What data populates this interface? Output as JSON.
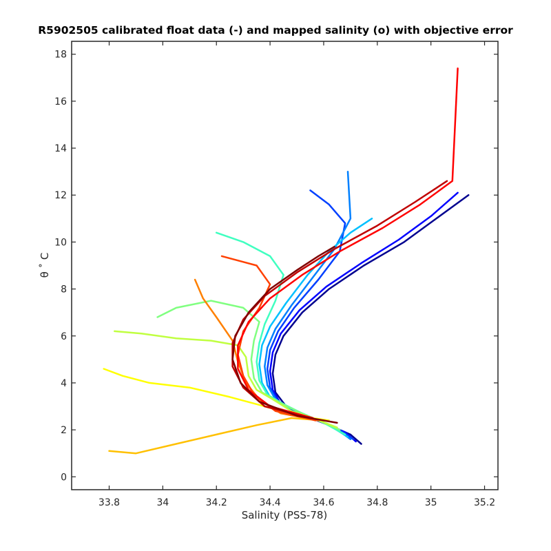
{
  "chart_data": {
    "type": "line",
    "title": "R5902505 calibrated float data (-) and mapped salinity (o) with objective error",
    "xlabel": "Salinity (PSS-78)",
    "ylabel": "θ ˚ C",
    "xlim": [
      33.66,
      35.25
    ],
    "ylim": [
      -0.55,
      18.55
    ],
    "xticks": [
      33.8,
      34,
      34.2,
      34.4,
      34.6,
      34.8,
      35,
      35.2
    ],
    "xtick_labels": [
      "33.8",
      "34",
      "34.2",
      "34.4",
      "34.6",
      "34.8",
      "35",
      "35.2"
    ],
    "yticks": [
      0,
      2,
      4,
      6,
      8,
      10,
      12,
      14,
      16,
      18
    ],
    "ytick_labels": [
      "0",
      "2",
      "4",
      "6",
      "8",
      "10",
      "12",
      "14",
      "16",
      "18"
    ],
    "grid": false,
    "legend": "none",
    "colormap": "jet (profile number, early blue to late dark red)",
    "series": [
      {
        "color": "#00008f",
        "x": [
          34.74,
          34.7,
          34.62,
          34.53,
          34.46,
          34.42,
          34.41,
          34.42,
          34.45,
          34.52,
          34.62,
          34.75,
          34.9,
          35.02,
          35.14
        ],
        "y": [
          1.4,
          1.8,
          2.2,
          2.6,
          3.0,
          3.6,
          4.4,
          5.2,
          6.0,
          7.0,
          8.0,
          9.0,
          10.0,
          11.0,
          12.0
        ]
      },
      {
        "color": "#0000ff",
        "x": [
          34.72,
          34.68,
          34.6,
          34.51,
          34.44,
          34.41,
          34.4,
          34.41,
          34.44,
          34.51,
          34.61,
          34.74,
          34.88,
          35.0,
          35.1
        ],
        "y": [
          1.5,
          1.9,
          2.3,
          2.7,
          3.1,
          3.7,
          4.5,
          5.3,
          6.1,
          7.1,
          8.1,
          9.1,
          10.1,
          11.1,
          12.1
        ]
      },
      {
        "color": "#0040ff",
        "x": [
          34.71,
          34.66,
          34.58,
          34.5,
          34.43,
          34.4,
          34.39,
          34.4,
          34.43,
          34.49,
          34.58,
          34.66,
          34.68,
          34.62,
          34.55
        ],
        "y": [
          1.6,
          2.0,
          2.4,
          2.8,
          3.2,
          3.8,
          4.6,
          5.4,
          6.2,
          7.2,
          8.4,
          9.6,
          10.8,
          11.6,
          12.2
        ]
      },
      {
        "color": "#0080ff",
        "x": [
          34.7,
          34.64,
          34.56,
          34.48,
          34.42,
          34.39,
          34.38,
          34.39,
          34.42,
          34.48,
          34.56,
          34.64,
          34.7,
          34.69
        ],
        "y": [
          1.6,
          2.1,
          2.5,
          2.9,
          3.3,
          3.9,
          4.7,
          5.5,
          6.3,
          7.3,
          8.5,
          9.7,
          11.0,
          13.0
        ]
      },
      {
        "color": "#00c0ff",
        "x": [
          34.69,
          34.62,
          34.54,
          34.46,
          34.4,
          34.37,
          34.36,
          34.37,
          34.4,
          34.46,
          34.54,
          34.62,
          34.7,
          34.78
        ],
        "y": [
          1.7,
          2.2,
          2.6,
          3.0,
          3.4,
          4.0,
          4.8,
          5.6,
          6.4,
          7.4,
          8.6,
          9.6,
          10.4,
          11.0
        ]
      },
      {
        "color": "#40ffc0",
        "x": [
          34.68,
          34.6,
          34.52,
          34.45,
          34.39,
          34.36,
          34.35,
          34.36,
          34.38,
          34.42,
          34.45,
          34.4,
          34.3,
          34.2
        ],
        "y": [
          1.8,
          2.3,
          2.7,
          3.1,
          3.5,
          4.1,
          4.9,
          5.7,
          6.5,
          7.5,
          8.6,
          9.4,
          10.0,
          10.4
        ]
      },
      {
        "color": "#80ff80",
        "x": [
          34.66,
          34.58,
          34.5,
          34.43,
          34.37,
          34.34,
          34.33,
          34.34,
          34.36,
          34.3,
          34.18,
          34.05,
          33.98
        ],
        "y": [
          2.0,
          2.4,
          2.8,
          3.2,
          3.6,
          4.2,
          5.0,
          5.8,
          6.6,
          7.2,
          7.5,
          7.2,
          6.8
        ]
      },
      {
        "color": "#c0ff40",
        "x": [
          34.65,
          34.56,
          34.48,
          34.41,
          34.35,
          34.32,
          34.31,
          34.28,
          34.18,
          34.05,
          33.92,
          33.82
        ],
        "y": [
          2.1,
          2.5,
          2.8,
          3.3,
          3.7,
          4.3,
          5.1,
          5.6,
          5.8,
          5.9,
          6.1,
          6.2
        ]
      },
      {
        "color": "#ffff00",
        "x": [
          34.62,
          34.5,
          34.38,
          34.25,
          34.1,
          33.95,
          33.85,
          33.78
        ],
        "y": [
          2.4,
          2.6,
          3.0,
          3.4,
          3.8,
          4.0,
          4.3,
          4.6
        ]
      },
      {
        "color": "#ffc000",
        "x": [
          34.6,
          34.48,
          34.35,
          34.2,
          34.05,
          33.9,
          33.8
        ],
        "y": [
          2.4,
          2.5,
          2.2,
          1.8,
          1.4,
          1.0,
          1.1
        ]
      },
      {
        "color": "#ff8000",
        "x": [
          34.58,
          34.44,
          34.36,
          34.31,
          34.28,
          34.26,
          34.2,
          34.15,
          34.12
        ],
        "y": [
          2.4,
          2.7,
          3.3,
          4.0,
          4.9,
          5.8,
          6.8,
          7.6,
          8.4
        ]
      },
      {
        "color": "#ff4000",
        "x": [
          34.57,
          34.42,
          34.34,
          34.3,
          34.28,
          34.3,
          34.36,
          34.4,
          34.35,
          34.22
        ],
        "y": [
          2.4,
          2.8,
          3.5,
          4.3,
          5.2,
          6.2,
          7.2,
          8.2,
          9.0,
          9.4
        ]
      },
      {
        "color": "#ff0000",
        "x": [
          34.56,
          34.4,
          34.32,
          34.28,
          34.28,
          34.32,
          34.4,
          34.52,
          34.66,
          34.82,
          34.96,
          35.08,
          35.1
        ],
        "y": [
          2.5,
          3.0,
          3.7,
          4.6,
          5.6,
          6.6,
          7.6,
          8.6,
          9.6,
          10.6,
          11.6,
          12.6,
          17.4
        ]
      },
      {
        "color": "#c00000",
        "x": [
          34.55,
          34.38,
          34.3,
          34.26,
          34.26,
          34.3,
          34.38,
          34.5,
          34.64,
          34.8,
          34.94,
          35.06
        ],
        "y": [
          2.5,
          3.0,
          3.8,
          4.7,
          5.7,
          6.7,
          7.7,
          8.7,
          9.7,
          10.7,
          11.7,
          12.6
        ]
      },
      {
        "color": "#800000",
        "x": [
          34.65,
          34.5,
          34.36,
          34.29,
          34.26,
          34.27,
          34.32,
          34.4,
          34.5,
          34.58,
          34.64
        ],
        "y": [
          2.3,
          2.6,
          3.2,
          4.0,
          5.0,
          6.0,
          7.0,
          8.0,
          8.8,
          9.4,
          9.8
        ]
      }
    ]
  }
}
